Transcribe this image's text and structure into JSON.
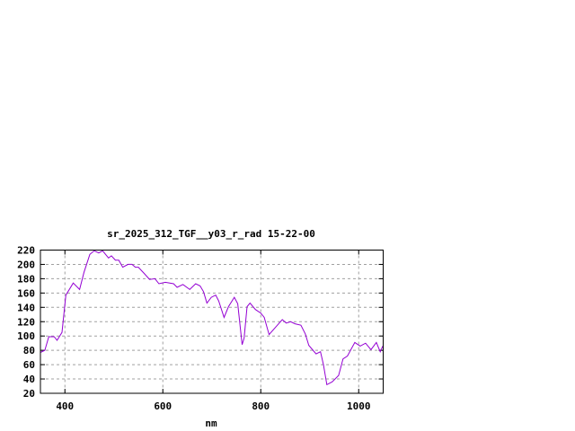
{
  "chart_data": {
    "type": "line",
    "title": "sr_2025_312_TGF__y03_r_rad 15-22-00",
    "xlabel": "nm",
    "ylabel": "",
    "xlim": [
      350,
      1050
    ],
    "ylim": [
      20,
      220
    ],
    "xticks": [
      400,
      600,
      800,
      1000
    ],
    "yticks": [
      20,
      40,
      60,
      80,
      100,
      120,
      140,
      160,
      180,
      200,
      220
    ],
    "grid": true,
    "legend": "none",
    "line_color": "#9400d3",
    "series": [
      {
        "x": [
          350,
          359,
          367,
          378,
          384,
          394,
          402,
          417,
          430,
          439,
          451,
          460,
          469,
          477,
          489,
          495,
          503,
          510,
          518,
          529,
          537,
          544,
          550,
          561,
          573,
          584,
          592,
          605,
          622,
          629,
          641,
          655,
          667,
          676,
          683,
          690,
          699,
          708,
          714,
          725,
          734,
          746,
          753,
          762,
          766,
          772,
          778,
          789,
          800,
          807,
          817,
          830,
          844,
          852,
          861,
          870,
          882,
          891,
          898,
          913,
          922,
          928,
          935,
          946,
          959,
          968,
          977,
          992,
          1003,
          1014,
          1025,
          1036,
          1044,
          1049
        ],
        "y": [
          77,
          80,
          99,
          99,
          94,
          105,
          157,
          174,
          165,
          189,
          214,
          219,
          216,
          219,
          209,
          212,
          206,
          206,
          196,
          200,
          200,
          196,
          196,
          188,
          179,
          180,
          173,
          175,
          173,
          168,
          172,
          165,
          173,
          170,
          162,
          146,
          154,
          157,
          149,
          126,
          141,
          154,
          145,
          88,
          97,
          141,
          146,
          137,
          132,
          126,
          102,
          112,
          123,
          118,
          120,
          117,
          115,
          103,
          87,
          75,
          78,
          60,
          32,
          36,
          45,
          68,
          72,
          91,
          86,
          90,
          81,
          91,
          78,
          86
        ]
      }
    ]
  }
}
